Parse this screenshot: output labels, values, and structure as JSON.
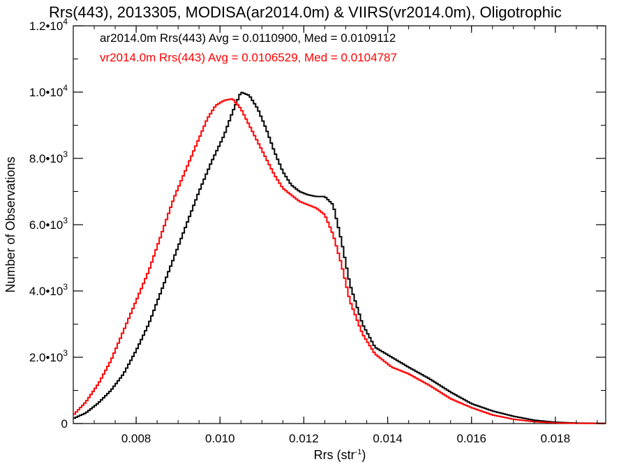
{
  "chart_data": {
    "type": "histogram-step",
    "title": "Rrs(443), 2013305, MODISA(ar2014.0m) & VIIRS(vr2014.0m), Oligotrophic",
    "xlabel": {
      "main": "Rrs (str",
      "sup": "-1",
      "close": ")"
    },
    "ylabel": "Number of Observations",
    "xlim": [
      0.0065,
      0.0192
    ],
    "ylim": [
      0,
      12000
    ],
    "grid": false,
    "x_ticks": [
      {
        "value": 0.008,
        "label": "0.008"
      },
      {
        "value": 0.01,
        "label": "0.010"
      },
      {
        "value": 0.012,
        "label": "0.012"
      },
      {
        "value": 0.014,
        "label": "0.014"
      },
      {
        "value": 0.016,
        "label": "0.016"
      },
      {
        "value": 0.018,
        "label": "0.018"
      }
    ],
    "y_ticks": [
      {
        "value": 0,
        "mant": "0",
        "exp": ""
      },
      {
        "value": 2000,
        "mant": "2.0•10",
        "exp": "3"
      },
      {
        "value": 4000,
        "mant": "4.0•10",
        "exp": "3"
      },
      {
        "value": 6000,
        "mant": "6.0•10",
        "exp": "3"
      },
      {
        "value": 8000,
        "mant": "8.0•10",
        "exp": "3"
      },
      {
        "value": 10000,
        "mant": "1.0•10",
        "exp": "4"
      },
      {
        "value": 12000,
        "mant": "1.2•10",
        "exp": "4"
      }
    ],
    "annotations": [
      {
        "text": "ar2014.0m Rrs(443) Avg = 0.0110900, Med = 0.0109112",
        "color": "#000000"
      },
      {
        "text": "vr2014.0m Rrs(443) Avg = 0.0106529, Med = 0.0104787",
        "color": "#ff0000"
      }
    ],
    "series": [
      {
        "color": "#000000",
        "points": [
          [
            0.0065,
            150
          ],
          [
            0.0068,
            320
          ],
          [
            0.0071,
            620
          ],
          [
            0.0074,
            1000
          ],
          [
            0.0077,
            1500
          ],
          [
            0.008,
            2200
          ],
          [
            0.0083,
            3000
          ],
          [
            0.0086,
            4000
          ],
          [
            0.0089,
            5000
          ],
          [
            0.0092,
            6000
          ],
          [
            0.0095,
            7000
          ],
          [
            0.0098,
            7900
          ],
          [
            0.0101,
            8700
          ],
          [
            0.0103,
            9400
          ],
          [
            0.0105,
            10000
          ],
          [
            0.0107,
            9900
          ],
          [
            0.0109,
            9500
          ],
          [
            0.0111,
            8900
          ],
          [
            0.0113,
            8200
          ],
          [
            0.0115,
            7600
          ],
          [
            0.0117,
            7200
          ],
          [
            0.0119,
            7000
          ],
          [
            0.0121,
            6900
          ],
          [
            0.0123,
            6850
          ],
          [
            0.0125,
            6850
          ],
          [
            0.0127,
            6600
          ],
          [
            0.0129,
            5500
          ],
          [
            0.0131,
            4200
          ],
          [
            0.0134,
            3000
          ],
          [
            0.0137,
            2300
          ],
          [
            0.0141,
            2000
          ],
          [
            0.0145,
            1700
          ],
          [
            0.015,
            1350
          ],
          [
            0.0155,
            950
          ],
          [
            0.016,
            600
          ],
          [
            0.0165,
            380
          ],
          [
            0.017,
            220
          ],
          [
            0.0175,
            100
          ],
          [
            0.018,
            40
          ],
          [
            0.0185,
            15
          ],
          [
            0.0192,
            5
          ]
        ]
      },
      {
        "color": "#ff0000",
        "points": [
          [
            0.0065,
            250
          ],
          [
            0.0068,
            650
          ],
          [
            0.0071,
            1200
          ],
          [
            0.0074,
            1900
          ],
          [
            0.0077,
            2800
          ],
          [
            0.008,
            3700
          ],
          [
            0.0083,
            4600
          ],
          [
            0.0086,
            5700
          ],
          [
            0.0089,
            6800
          ],
          [
            0.0092,
            7700
          ],
          [
            0.0095,
            8600
          ],
          [
            0.0097,
            9200
          ],
          [
            0.0099,
            9600
          ],
          [
            0.0101,
            9750
          ],
          [
            0.0103,
            9800
          ],
          [
            0.0105,
            9500
          ],
          [
            0.0107,
            9000
          ],
          [
            0.0109,
            8500
          ],
          [
            0.0111,
            8000
          ],
          [
            0.0113,
            7500
          ],
          [
            0.0115,
            7100
          ],
          [
            0.0117,
            6900
          ],
          [
            0.0119,
            6700
          ],
          [
            0.0121,
            6600
          ],
          [
            0.0123,
            6500
          ],
          [
            0.0125,
            6300
          ],
          [
            0.0127,
            5700
          ],
          [
            0.0129,
            4800
          ],
          [
            0.0131,
            3700
          ],
          [
            0.0134,
            2700
          ],
          [
            0.0137,
            2100
          ],
          [
            0.0141,
            1700
          ],
          [
            0.0145,
            1500
          ],
          [
            0.015,
            1150
          ],
          [
            0.0155,
            750
          ],
          [
            0.016,
            480
          ],
          [
            0.0165,
            260
          ],
          [
            0.017,
            130
          ],
          [
            0.0175,
            55
          ],
          [
            0.018,
            20
          ],
          [
            0.0185,
            8
          ],
          [
            0.0192,
            3
          ]
        ]
      }
    ]
  }
}
